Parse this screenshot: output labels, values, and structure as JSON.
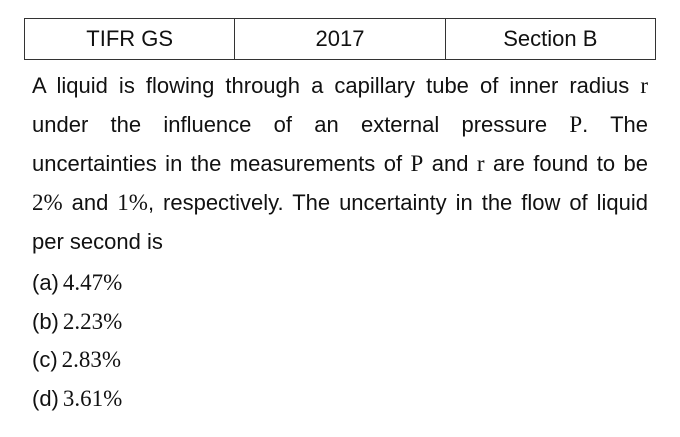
{
  "header": {
    "cells": [
      "TIFR GS",
      "2017",
      "Section B"
    ]
  },
  "question": {
    "segments": [
      "A liquid is flowing through a capillary tube of inner radius ",
      "r",
      " under the influence of an external pressure ",
      "P",
      ". The uncertainties in the measurements of ",
      "P",
      " and ",
      "r",
      " are found to be ",
      "2%",
      " and ",
      "1%",
      ", respectively. The uncertainty in the flow of liquid per second is"
    ]
  },
  "options": [
    {
      "label": "(a)",
      "value": "4.47%"
    },
    {
      "label": "(b)",
      "value": "2.23%"
    },
    {
      "label": "(c)",
      "value": "2.83%"
    },
    {
      "label": "(d)",
      "value": "3.61%"
    }
  ]
}
